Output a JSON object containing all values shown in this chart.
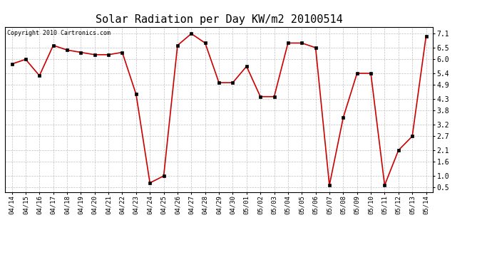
{
  "title": "Solar Radiation per Day KW/m2 20100514",
  "copyright": "Copyright 2010 Cartronics.com",
  "labels": [
    "04/14",
    "04/15",
    "04/16",
    "04/17",
    "04/18",
    "04/19",
    "04/20",
    "04/21",
    "04/22",
    "04/23",
    "04/24",
    "04/25",
    "04/26",
    "04/27",
    "04/28",
    "04/29",
    "04/30",
    "05/01",
    "05/02",
    "05/03",
    "05/04",
    "05/05",
    "05/06",
    "05/07",
    "05/08",
    "05/09",
    "05/10",
    "05/11",
    "05/12",
    "05/13",
    "05/14"
  ],
  "values": [
    5.8,
    6.0,
    5.3,
    6.6,
    6.4,
    6.3,
    6.2,
    6.2,
    6.3,
    4.5,
    0.7,
    1.0,
    6.6,
    7.1,
    6.7,
    5.0,
    5.0,
    5.7,
    4.4,
    4.4,
    6.7,
    6.7,
    6.5,
    0.6,
    3.5,
    5.4,
    5.4,
    0.6,
    2.1,
    2.7,
    7.0
  ],
  "line_color": "#cc0000",
  "marker_color": "#000000",
  "bg_color": "#ffffff",
  "plot_bg_color": "#ffffff",
  "grid_color": "#c0c0c0",
  "title_fontsize": 11,
  "copyright_fontsize": 6,
  "yticks": [
    0.5,
    1.0,
    1.6,
    2.1,
    2.7,
    3.2,
    3.8,
    4.3,
    4.9,
    5.4,
    6.0,
    6.5,
    7.1
  ],
  "ylim": [
    0.3,
    7.4
  ],
  "tick_fontsize": 6.5,
  "figsize": [
    6.9,
    3.75
  ],
  "dpi": 100
}
